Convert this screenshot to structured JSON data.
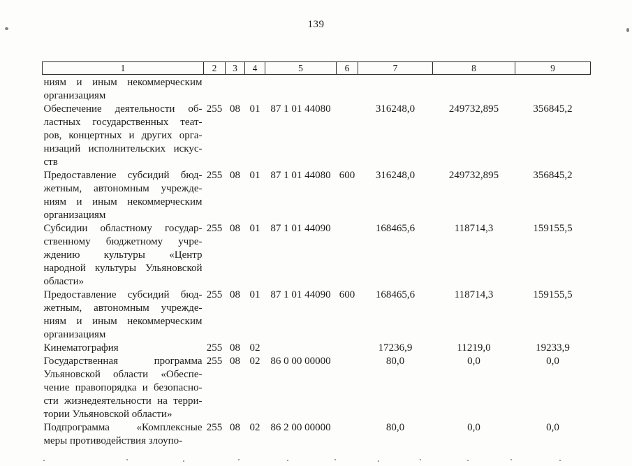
{
  "page": {
    "number": "139"
  },
  "table": {
    "header": [
      "1",
      "2",
      "3",
      "4",
      "5",
      "6",
      "7",
      "8",
      "9"
    ],
    "rows": [
      {
        "name": [
          "ниям и иным некоммерческим",
          "организациям"
        ],
        "c2": "",
        "c3": "",
        "c4": "",
        "c5": "",
        "c6": "",
        "c7": "",
        "c8": "",
        "c9": ""
      },
      {
        "name": [
          "Обеспечение деятельности об-",
          "ластных государственных теат-",
          "ров, концертных и других орга-",
          "низаций исполнительских искус-",
          "ств"
        ],
        "c2": "255",
        "c3": "08",
        "c4": "01",
        "c5": "87 1 01 44080",
        "c6": "",
        "c7": "316248,0",
        "c8": "249732,895",
        "c9": "356845,2"
      },
      {
        "name": [
          "Предоставление субсидий бюд-",
          "жетным, автономным учрежде-",
          "ниям и иным некоммерческим",
          "организациям"
        ],
        "c2": "255",
        "c3": "08",
        "c4": "01",
        "c5": "87 1 01 44080",
        "c6": "600",
        "c7": "316248,0",
        "c8": "249732,895",
        "c9": "356845,2"
      },
      {
        "name": [
          "Субсидии областному государ-",
          "ственному бюджетному учре-",
          "ждению культуры «Центр",
          "народной культуры Ульяновской",
          "области»"
        ],
        "c2": "255",
        "c3": "08",
        "c4": "01",
        "c5": "87 1 01 44090",
        "c6": "",
        "c7": "168465,6",
        "c8": "118714,3",
        "c9": "159155,5"
      },
      {
        "name": [
          "Предоставление субсидий бюд-",
          "жетным, автономным учрежде-",
          "ниям и иным некоммерческим",
          "организациям"
        ],
        "c2": "255",
        "c3": "08",
        "c4": "01",
        "c5": "87 1 01 44090",
        "c6": "600",
        "c7": "168465,6",
        "c8": "118714,3",
        "c9": "159155,5"
      },
      {
        "name": [
          "Кинематография"
        ],
        "c2": "255",
        "c3": "08",
        "c4": "02",
        "c5": "",
        "c6": "",
        "c7": "17236,9",
        "c8": "11219,0",
        "c9": "19233,9"
      },
      {
        "name": [
          "Государственная программа",
          "Ульяновской области «Обеспе-",
          "чение правопорядка и безопасно-",
          "сти жизнедеятельности на терри-",
          "тории Ульяновской области»"
        ],
        "c2": "255",
        "c3": "08",
        "c4": "02",
        "c5": "86 0 00 00000",
        "c6": "",
        "c7": "80,0",
        "c8": "0,0",
        "c9": "0,0"
      },
      {
        "name": [
          "Подпрограмма «Комплексные",
          "меры противодействия злоупо-"
        ],
        "c2": "255",
        "c3": "08",
        "c4": "02",
        "c5": "86 2 00 00000",
        "c6": "",
        "c7": "80,0",
        "c8": "0,0",
        "c9": "0,0"
      }
    ]
  }
}
